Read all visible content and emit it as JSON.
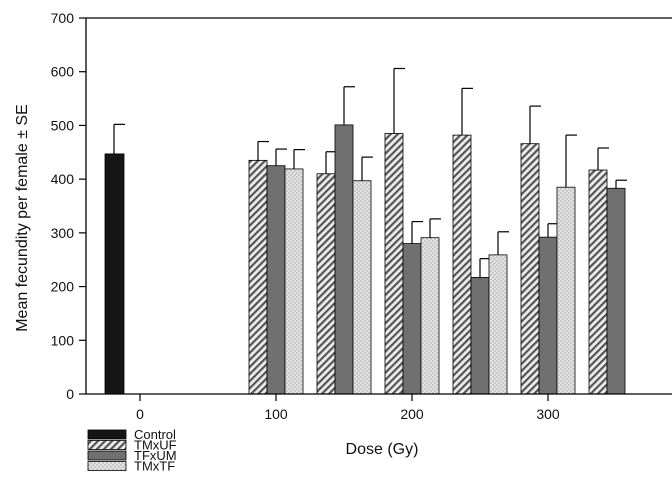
{
  "chart_data": {
    "type": "bar",
    "xlabel": "Dose (Gy)",
    "ylabel": "Mean fecundity per female ± SE",
    "ylim": [
      0,
      700
    ],
    "yticks": [
      0,
      100,
      200,
      300,
      400,
      500,
      600,
      700
    ],
    "x_ticks": [
      "0",
      "100",
      "200",
      "300"
    ],
    "legend_position": "bottom-left",
    "series": [
      {
        "name": "Control",
        "pattern": "solid",
        "color": "#151515"
      },
      {
        "name": "TMxUF",
        "pattern": "hatch",
        "color": "#6e6e6e"
      },
      {
        "name": "TFxUM",
        "pattern": "solid",
        "color": "#707070"
      },
      {
        "name": "TMxTF",
        "pattern": "dots",
        "color": "#d8d8d8"
      }
    ],
    "bars": [
      {
        "dose_gy": 0,
        "series": "Control",
        "value": 447,
        "se": 55
      },
      {
        "dose_gy": 100,
        "series": "TMxUF",
        "value": 435,
        "se": 35
      },
      {
        "dose_gy": 100,
        "series": "TFxUM",
        "value": 425,
        "se": 31
      },
      {
        "dose_gy": 100,
        "series": "TMxTF",
        "value": 419,
        "se": 36
      },
      {
        "dose_gy": 150,
        "series": "TMxUF",
        "value": 410,
        "se": 41
      },
      {
        "dose_gy": 150,
        "series": "TFxUM",
        "value": 501,
        "se": 71
      },
      {
        "dose_gy": 150,
        "series": "TMxTF",
        "value": 397,
        "se": 44
      },
      {
        "dose_gy": 200,
        "series": "TMxUF",
        "value": 485,
        "se": 121
      },
      {
        "dose_gy": 200,
        "series": "TFxUM",
        "value": 280,
        "se": 41
      },
      {
        "dose_gy": 200,
        "series": "TMxTF",
        "value": 291,
        "se": 35
      },
      {
        "dose_gy": 250,
        "series": "TMxUF",
        "value": 482,
        "se": 87
      },
      {
        "dose_gy": 250,
        "series": "TFxUM",
        "value": 217,
        "se": 35
      },
      {
        "dose_gy": 250,
        "series": "TMxTF",
        "value": 259,
        "se": 43
      },
      {
        "dose_gy": 300,
        "series": "TMxUF",
        "value": 466,
        "se": 70
      },
      {
        "dose_gy": 300,
        "series": "TFxUM",
        "value": 292,
        "se": 25
      },
      {
        "dose_gy": 300,
        "series": "TMxTF",
        "value": 385,
        "se": 97
      },
      {
        "dose_gy": 350,
        "series": "TMxUF",
        "value": 417,
        "se": 41
      },
      {
        "dose_gy": 350,
        "series": "TFxUM",
        "value": 383,
        "se": 15
      }
    ]
  }
}
